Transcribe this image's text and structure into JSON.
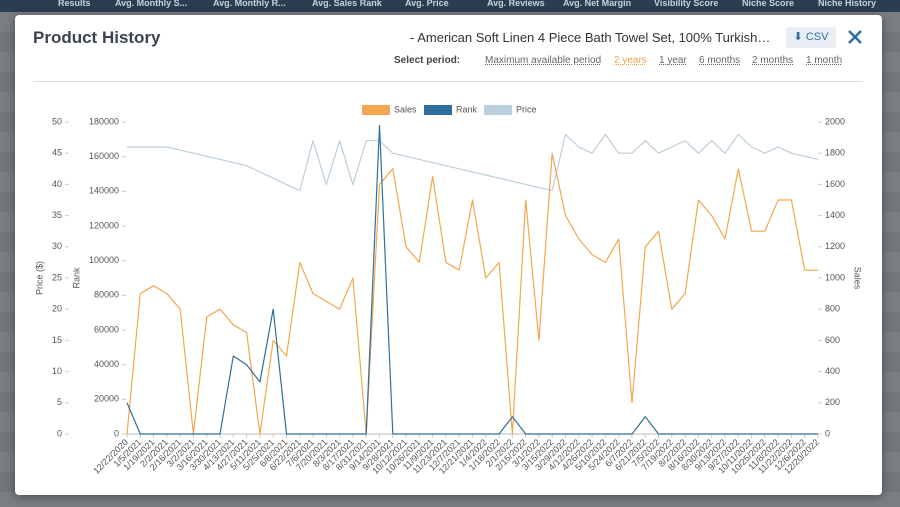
{
  "background": {
    "headers": [
      "Results",
      "Avg. Monthly S...",
      "Avg. Monthly R...",
      "Avg. Sales Rank",
      "Avg. Price",
      "Avg. Reviews",
      "Avg. Net Margin",
      "Visibility Score",
      "Niche Score",
      "Niche History"
    ]
  },
  "modal": {
    "title": "Product History",
    "product": "- American Soft Linen 4 Piece Bath Towel Set, 100% Turkish…",
    "csv": "CSV",
    "period_label": "Select period:",
    "periods": [
      "Maximum available period",
      "2 years",
      "1 year",
      "6 months",
      "2 months",
      "1 month"
    ],
    "active_period": 1
  },
  "chart_data": {
    "type": "line",
    "categories": [
      "12/22/2020",
      "1/5/2021",
      "1/19/2021",
      "2/2/2021",
      "2/16/2021",
      "3/2/2021",
      "3/16/2021",
      "3/30/2021",
      "4/13/2021",
      "4/27/2021",
      "5/11/2021",
      "5/25/2021",
      "6/8/2021",
      "6/22/2021",
      "7/6/2021",
      "7/20/2021",
      "8/3/2021",
      "8/17/2021",
      "8/31/2021",
      "9/14/2021",
      "9/28/2021",
      "10/12/2021",
      "10/26/2021",
      "11/9/2021",
      "11/23/2021",
      "12/7/2021",
      "12/21/2021",
      "1/4/2022",
      "1/18/2022",
      "2/1/2022",
      "2/15/2022",
      "3/1/2022",
      "3/15/2022",
      "3/29/2022",
      "4/12/2022",
      "4/26/2022",
      "5/10/2022",
      "5/24/2022",
      "6/7/2022",
      "6/21/2022",
      "7/5/2022",
      "7/19/2022",
      "8/2/2022",
      "8/16/2022",
      "8/30/2022",
      "9/13/2022",
      "9/27/2022",
      "10/11/2022",
      "10/25/2022",
      "11/8/2022",
      "11/22/2022",
      "12/6/2022",
      "12/20/2022"
    ],
    "ylabel": "Rank",
    "ylim": [
      0,
      180000
    ],
    "yticks": [
      0,
      20000,
      40000,
      60000,
      80000,
      100000,
      120000,
      140000,
      160000,
      180000
    ],
    "y2label": "Sales",
    "y2lim": [
      0,
      2000
    ],
    "y2ticks": [
      0,
      200,
      400,
      600,
      800,
      1000,
      1200,
      1400,
      1600,
      1800,
      2000
    ],
    "y3label": "Price ($)",
    "y3lim": [
      0,
      50
    ],
    "y3ticks": [
      0,
      5,
      10,
      15,
      20,
      25,
      30,
      35,
      40,
      45,
      50
    ],
    "legend": "top",
    "series": [
      {
        "name": "Sales",
        "color": "#f2a74e",
        "axis": "y2",
        "values": [
          0,
          900,
          950,
          900,
          800,
          0,
          750,
          800,
          700,
          650,
          0,
          600,
          500,
          1100,
          900,
          850,
          800,
          1000,
          0,
          1600,
          1700,
          1200,
          1100,
          1650,
          1100,
          1050,
          1500,
          1000,
          1100,
          0,
          1500,
          600,
          1800,
          1400,
          1250,
          1150,
          1100,
          1250,
          200,
          1200,
          1300,
          800,
          900,
          1500,
          1400,
          1250,
          1700,
          1300,
          1300,
          1500,
          1500,
          1050,
          1050
        ]
      },
      {
        "name": "Rank",
        "color": "#2f6f9f",
        "values": [
          18000,
          0,
          0,
          0,
          0,
          0,
          0,
          0,
          45000,
          40000,
          30000,
          72000,
          0,
          0,
          0,
          0,
          0,
          0,
          0,
          178000,
          0,
          0,
          0,
          0,
          0,
          0,
          0,
          0,
          0,
          10000,
          0,
          0,
          0,
          0,
          0,
          0,
          0,
          0,
          0,
          10000,
          0,
          0,
          0,
          0,
          0,
          0,
          0,
          0,
          0,
          0,
          0,
          0,
          0
        ]
      },
      {
        "name": "Price",
        "color": "#bccfdc",
        "axis": "y3",
        "values": [
          46,
          46,
          46,
          46,
          45.5,
          45,
          44.5,
          44,
          43.5,
          43,
          42,
          41,
          40,
          39,
          47,
          40,
          47,
          40,
          47,
          47,
          45,
          44.5,
          44,
          43.5,
          43,
          42.5,
          42,
          41.5,
          41,
          40.5,
          40,
          39.5,
          39,
          48,
          46,
          45,
          48,
          45,
          45,
          47,
          45,
          46,
          47,
          45,
          47,
          45,
          48,
          46,
          45,
          46,
          45,
          44.5,
          44
        ]
      }
    ]
  }
}
